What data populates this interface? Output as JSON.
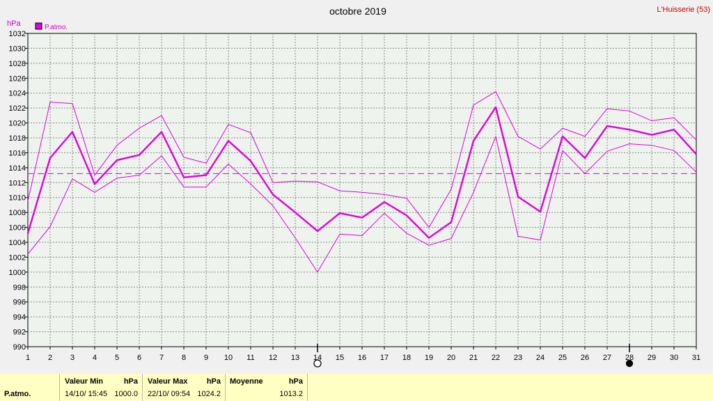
{
  "chart_data": {
    "type": "line",
    "title": "octobre 2019",
    "location": "L'Huisserie (53)",
    "ylabel": "hPa",
    "legend": "P.atmo.",
    "ylim": [
      990,
      1032
    ],
    "ytick_step": 2,
    "x": [
      1,
      2,
      3,
      4,
      5,
      6,
      7,
      8,
      9,
      10,
      11,
      12,
      13,
      14,
      15,
      16,
      17,
      18,
      19,
      20,
      21,
      22,
      23,
      24,
      25,
      26,
      27,
      28,
      29,
      30,
      31
    ],
    "series": [
      {
        "name": "P.atmo.",
        "role": "mean",
        "color": "#e000e0",
        "values": [
          1005.2,
          1015.3,
          1018.8,
          1011.8,
          1015.0,
          1015.7,
          1018.8,
          1012.7,
          1013.0,
          1017.6,
          1014.9,
          1010.4,
          1008.0,
          1005.5,
          1007.9,
          1007.3,
          1009.4,
          1007.6,
          1004.6,
          1006.7,
          1017.6,
          1022.1,
          1010.1,
          1008.1,
          1018.2,
          1015.3,
          1019.6,
          1019.1,
          1018.4,
          1019.1,
          1015.8
        ]
      },
      {
        "role": "max",
        "color": "#e000e0",
        "values": [
          1009.5,
          1022.8,
          1022.6,
          1013.0,
          1017.0,
          1019.3,
          1021.0,
          1015.4,
          1014.6,
          1019.8,
          1018.7,
          1012.0,
          1012.2,
          1012.1,
          1010.9,
          1010.7,
          1010.4,
          1009.9,
          1006.0,
          1011.1,
          1022.4,
          1024.2,
          1018.2,
          1016.5,
          1019.3,
          1018.2,
          1021.9,
          1021.6,
          1020.3,
          1020.7,
          1017.7
        ]
      },
      {
        "role": "min",
        "color": "#e000e0",
        "values": [
          1002.4,
          1006.1,
          1012.5,
          1010.7,
          1012.6,
          1013.0,
          1015.6,
          1011.4,
          1011.4,
          1014.5,
          1011.8,
          1008.9,
          1004.6,
          1000.0,
          1005.1,
          1004.9,
          1007.9,
          1005.2,
          1003.6,
          1004.5,
          1010.7,
          1018.2,
          1004.8,
          1004.3,
          1016.3,
          1013.2,
          1016.2,
          1017.2,
          1017.0,
          1016.3,
          1013.4
        ]
      }
    ],
    "reference_line": {
      "value": 1013.2,
      "style": "dashed",
      "color": "#e000e0"
    },
    "moon_phases": [
      {
        "day": 14,
        "phase": "full-moon"
      },
      {
        "day": 28,
        "phase": "new-moon"
      }
    ],
    "grid": true
  },
  "footer": {
    "row_label": "P.atmo.",
    "min_title": "Valeur Min",
    "min_unit": "hPa",
    "min_date": "14/10/  15:45",
    "min_value": "1000.0",
    "max_title": "Valeur Max",
    "max_unit": "hPa",
    "max_date": "22/10/  09:54",
    "max_value": "1024.2",
    "avg_title": "Moyenne",
    "avg_unit": "hPa",
    "avg_value": "1013.2"
  }
}
